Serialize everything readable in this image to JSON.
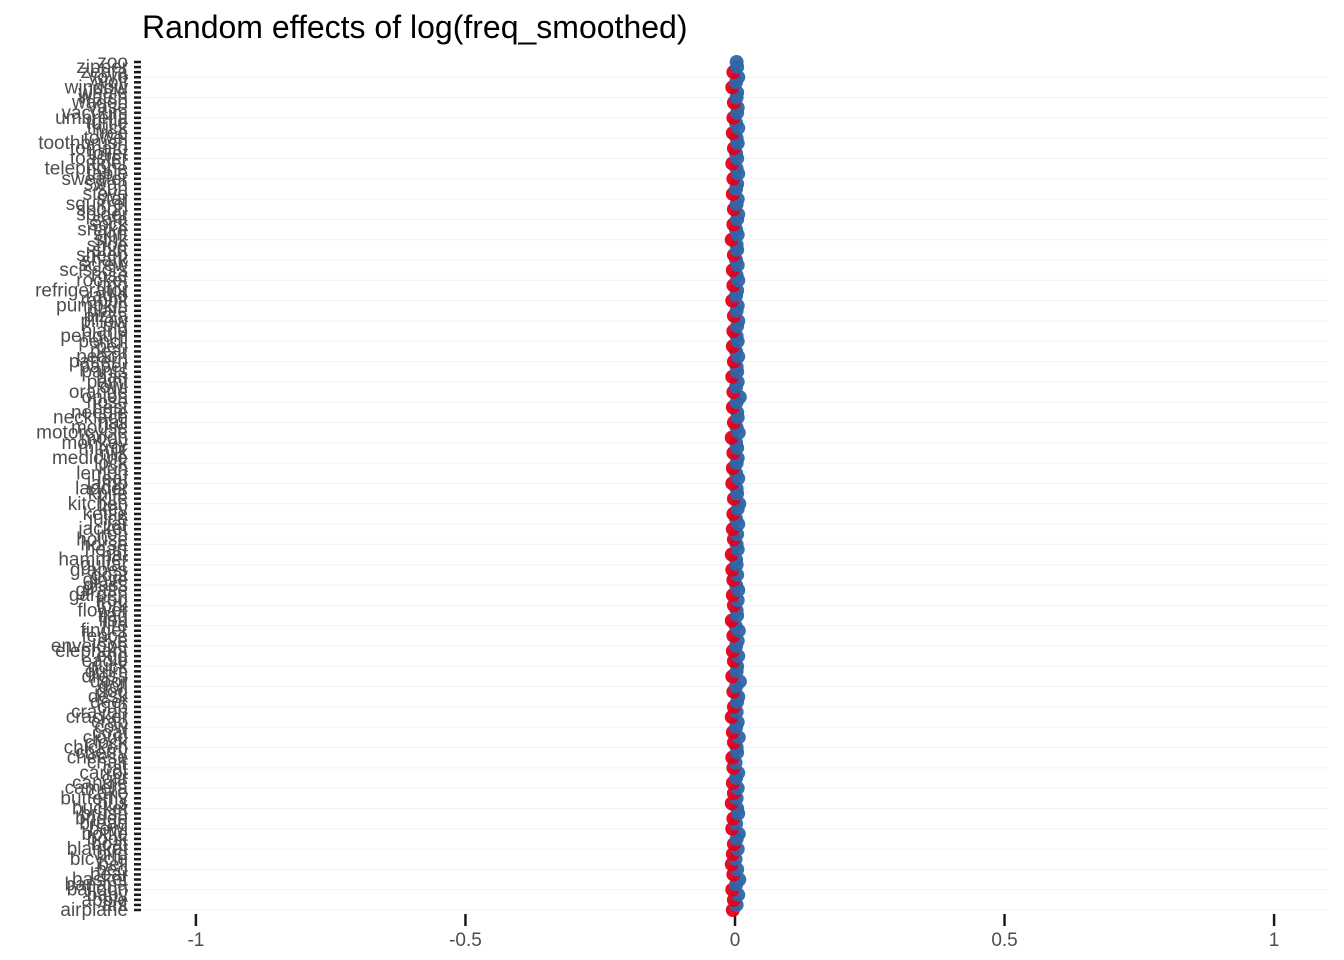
{
  "chart_data": {
    "type": "scatter",
    "title": "Random effects of log(freq_smoothed)",
    "xlabel": "",
    "ylabel": "",
    "xlim": [
      -1.1,
      1.1
    ],
    "x_ticks": [
      -1,
      -0.5,
      0,
      0.5,
      1
    ],
    "x_tick_labels": [
      "-1",
      "-0.5",
      "0",
      "0.5",
      "1"
    ],
    "grid": "light horizontal lines",
    "legend": "none",
    "colors": {
      "positive": "#2f65a7",
      "negative": "#e1001a",
      "axis": "#1a1a1a",
      "grid": "#f2f2f2"
    },
    "categories": [
      "airplane",
      "ant",
      "apple",
      "baby",
      "balloon",
      "banana",
      "basket",
      "bear",
      "bed",
      "bell",
      "bicycle",
      "bird",
      "blanket",
      "boat",
      "book",
      "bottle",
      "bowl",
      "bread",
      "bridge",
      "brush",
      "bucket",
      "bus",
      "butterfly",
      "cake",
      "camera",
      "candle",
      "car",
      "carrot",
      "cat",
      "chair",
      "cheese",
      "cherry",
      "chicken",
      "clock",
      "cloud",
      "coat",
      "cow",
      "crab",
      "cracker",
      "crayon",
      "cup",
      "deer",
      "desk",
      "dog",
      "doll",
      "door",
      "dress",
      "drum",
      "duck",
      "eagle",
      "egg",
      "elephant",
      "envelope",
      "eye",
      "fence",
      "finger",
      "fire",
      "fish",
      "flag",
      "flower",
      "fork",
      "frog",
      "garden",
      "giraffe",
      "glass",
      "glove",
      "goat",
      "grapes",
      "guitar",
      "hammer",
      "hat",
      "heart",
      "horse",
      "house",
      "iron",
      "jacket",
      "jar",
      "juice",
      "kettle",
      "key",
      "kitchen",
      "kite",
      "knife",
      "ladder",
      "lamp",
      "leaf",
      "lemon",
      "lion",
      "lock",
      "medicine",
      "milk",
      "mirror",
      "monkey",
      "moon",
      "motorcycle",
      "mouse",
      "nail",
      "necklace",
      "needle",
      "nest",
      "nose",
      "onion",
      "orange",
      "owl",
      "paint",
      "pan",
      "pants",
      "paper",
      "pattern",
      "peach",
      "pear",
      "pen",
      "pencil",
      "penguin",
      "piano",
      "pig",
      "pillow",
      "pizza",
      "plate",
      "pumpkin",
      "rabbit",
      "radio",
      "refrigerator",
      "ring",
      "rocket",
      "rose",
      "scissors",
      "screw",
      "shark",
      "sheep",
      "shirt",
      "shoe",
      "sink",
      "skirt",
      "snake",
      "sock",
      "sofa",
      "spider",
      "spoon",
      "squirrel",
      "star",
      "stove",
      "sun",
      "swan",
      "sweater",
      "table",
      "telephone",
      "tiger",
      "toaster",
      "toilet",
      "tomato",
      "toothbrush",
      "towel",
      "tree",
      "truck",
      "turtle",
      "umbrella",
      "vacuum",
      "vase",
      "wagon",
      "watch",
      "whale",
      "window",
      "wolf",
      "yoyo",
      "zebra",
      "zipper",
      "zoo"
    ],
    "values": [
      -0.004,
      0.003,
      -0.002,
      0.006,
      -0.005,
      0.002,
      0.008,
      -0.003,
      0.004,
      -0.006,
      0.001,
      -0.004,
      0.005,
      -0.002,
      0.003,
      0.007,
      -0.005,
      0.002,
      -0.003,
      0.006,
      0.004,
      -0.006,
      0.003,
      -0.002,
      0.005,
      -0.004,
      0.002,
      0.006,
      -0.003,
      0.001,
      -0.005,
      0.004,
      0.003,
      -0.002,
      0.007,
      -0.004,
      0.002,
      0.005,
      -0.006,
      0.003,
      -0.002,
      0.004,
      0.006,
      -0.003,
      0.002,
      0.009,
      -0.005,
      0.003,
      0.004,
      -0.002,
      0.006,
      -0.004,
      0.002,
      0.005,
      -0.003,
      0.007,
      0.001,
      -0.006,
      0.004,
      0.003,
      -0.002,
      0.005,
      -0.004,
      0.006,
      0.002,
      -0.003,
      0.004,
      -0.005,
      0.003,
      0.002,
      -0.006,
      0.005,
      0.003,
      -0.002,
      0.004,
      -0.004,
      0.006,
      0.002,
      -0.003,
      0.005,
      0.008,
      -0.002,
      0.004,
      0.003,
      -0.005,
      0.006,
      0.002,
      -0.004,
      0.003,
      0.005,
      -0.003,
      0.004,
      0.002,
      -0.006,
      0.007,
      0.003,
      -0.002,
      0.005,
      0.004,
      -0.004,
      0.003,
      0.009,
      -0.003,
      0.002,
      0.005,
      -0.005,
      0.004,
      0.003,
      -0.002,
      0.006,
      0.002,
      -0.004,
      0.005,
      0.003,
      -0.003,
      0.004,
      0.006,
      -0.002,
      0.003,
      0.005,
      -0.005,
      0.002,
      0.004,
      -0.003,
      0.006,
      0.003,
      -0.004,
      0.005,
      0.002,
      -0.002,
      0.004,
      0.003,
      -0.006,
      0.005,
      0.002,
      -0.003,
      0.004,
      0.006,
      -0.002,
      0.003,
      0.005,
      -0.004,
      0.002,
      0.004,
      -0.003,
      0.006,
      0.003,
      -0.005,
      0.004,
      0.002,
      -0.002,
      0.005,
      0.003,
      -0.004,
      0.006,
      0.002,
      -0.003,
      0.004,
      0.005,
      -0.002,
      0.003,
      0.004,
      -0.005,
      0.002,
      0.006,
      -0.003,
      0.004,
      0.003
    ]
  }
}
